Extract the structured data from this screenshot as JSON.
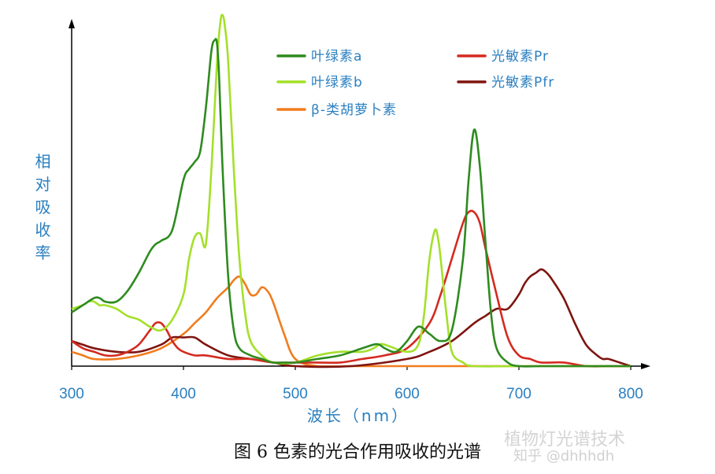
{
  "chart_data": {
    "type": "line",
    "xlabel": "波长（nm）",
    "ylabel": "相对吸收率",
    "xlim": [
      300,
      800
    ],
    "ylim": [
      0,
      1
    ],
    "x_ticks": [
      "300",
      "400",
      "500",
      "600",
      "700",
      "800"
    ],
    "legend_placement": "top-right",
    "grid": false,
    "series": [
      {
        "name": "叶绿素a",
        "color": "#2e8b1f",
        "x": [
          300,
          310,
          320,
          325,
          330,
          340,
          350,
          360,
          370,
          375,
          380,
          390,
          400,
          405,
          410,
          415,
          420,
          425,
          428,
          430,
          432,
          435,
          440,
          445,
          450,
          460,
          470,
          480,
          490,
          500,
          520,
          540,
          560,
          570,
          575,
          580,
          590,
          600,
          610,
          620,
          630,
          640,
          650,
          655,
          660,
          665,
          670,
          675,
          680,
          690,
          700,
          720,
          750,
          800
        ],
        "y": [
          0.15,
          0.17,
          0.19,
          0.19,
          0.18,
          0.18,
          0.21,
          0.26,
          0.32,
          0.34,
          0.35,
          0.38,
          0.52,
          0.55,
          0.57,
          0.6,
          0.72,
          0.88,
          0.91,
          0.9,
          0.8,
          0.55,
          0.25,
          0.1,
          0.05,
          0.03,
          0.02,
          0.01,
          0.01,
          0.01,
          0.02,
          0.03,
          0.05,
          0.06,
          0.06,
          0.05,
          0.04,
          0.07,
          0.11,
          0.09,
          0.07,
          0.1,
          0.3,
          0.52,
          0.66,
          0.56,
          0.35,
          0.15,
          0.05,
          0.01,
          0.0,
          0.0,
          0.0,
          0.0
        ]
      },
      {
        "name": "叶绿素b",
        "color": "#a4e02a",
        "x": [
          300,
          310,
          315,
          320,
          325,
          330,
          340,
          350,
          360,
          370,
          380,
          390,
          400,
          405,
          410,
          415,
          420,
          425,
          430,
          433,
          435,
          437,
          440,
          445,
          450,
          455,
          460,
          470,
          480,
          500,
          520,
          540,
          560,
          570,
          575,
          580,
          600,
          610,
          615,
          620,
          625,
          628,
          630,
          635,
          640,
          650,
          660,
          700,
          800
        ],
        "y": [
          0.16,
          0.17,
          0.18,
          0.18,
          0.17,
          0.17,
          0.16,
          0.14,
          0.13,
          0.11,
          0.1,
          0.13,
          0.2,
          0.3,
          0.36,
          0.37,
          0.34,
          0.55,
          0.85,
          0.96,
          0.98,
          0.95,
          0.85,
          0.55,
          0.3,
          0.15,
          0.07,
          0.03,
          0.01,
          0.01,
          0.03,
          0.04,
          0.04,
          0.05,
          0.06,
          0.06,
          0.04,
          0.06,
          0.14,
          0.3,
          0.38,
          0.35,
          0.3,
          0.15,
          0.04,
          0.01,
          0.0,
          0.0,
          0.0
        ]
      },
      {
        "name": "β-类胡萝卜素",
        "color": "#f07c1e",
        "x": [
          300,
          310,
          320,
          340,
          360,
          380,
          400,
          410,
          420,
          430,
          440,
          445,
          450,
          455,
          460,
          465,
          470,
          475,
          480,
          490,
          500,
          520,
          550,
          600,
          700,
          800
        ],
        "y": [
          0.04,
          0.03,
          0.02,
          0.02,
          0.03,
          0.05,
          0.09,
          0.12,
          0.15,
          0.19,
          0.22,
          0.24,
          0.25,
          0.23,
          0.2,
          0.2,
          0.22,
          0.21,
          0.18,
          0.09,
          0.02,
          0.0,
          0.0,
          0.0,
          0.0,
          0.0
        ]
      },
      {
        "name": "光敏素Pr",
        "color": "#d42a20",
        "x": [
          300,
          310,
          320,
          330,
          340,
          350,
          360,
          370,
          375,
          380,
          385,
          390,
          395,
          400,
          410,
          420,
          440,
          460,
          480,
          500,
          520,
          540,
          560,
          580,
          600,
          620,
          630,
          640,
          650,
          655,
          660,
          665,
          670,
          680,
          690,
          700,
          710,
          720,
          740,
          760,
          780,
          800
        ],
        "y": [
          0.07,
          0.05,
          0.04,
          0.03,
          0.03,
          0.04,
          0.06,
          0.1,
          0.12,
          0.12,
          0.1,
          0.07,
          0.05,
          0.04,
          0.03,
          0.03,
          0.02,
          0.02,
          0.01,
          0.01,
          0.01,
          0.01,
          0.02,
          0.03,
          0.05,
          0.12,
          0.2,
          0.3,
          0.4,
          0.43,
          0.43,
          0.4,
          0.33,
          0.2,
          0.08,
          0.03,
          0.02,
          0.01,
          0.01,
          0.0,
          0.0,
          0.0
        ]
      },
      {
        "name": "光敏素Pfr",
        "color": "#7e1510",
        "x": [
          300,
          310,
          320,
          340,
          360,
          380,
          390,
          400,
          410,
          420,
          440,
          460,
          480,
          500,
          550,
          600,
          620,
          640,
          660,
          670,
          680,
          690,
          700,
          705,
          710,
          715,
          720,
          725,
          730,
          740,
          750,
          760,
          770,
          775,
          780,
          790,
          800
        ],
        "y": [
          0.07,
          0.06,
          0.05,
          0.04,
          0.04,
          0.06,
          0.08,
          0.08,
          0.08,
          0.06,
          0.03,
          0.02,
          0.01,
          0.0,
          0.0,
          0.02,
          0.04,
          0.07,
          0.12,
          0.14,
          0.16,
          0.16,
          0.2,
          0.23,
          0.25,
          0.26,
          0.27,
          0.26,
          0.24,
          0.19,
          0.12,
          0.06,
          0.03,
          0.02,
          0.02,
          0.01,
          0.0
        ]
      }
    ]
  },
  "caption": "图 6 色素的光合作用吸收的光谱",
  "watermark": "植物灯光谱技术",
  "watermark_sub": "知乎 @dhhhdh"
}
